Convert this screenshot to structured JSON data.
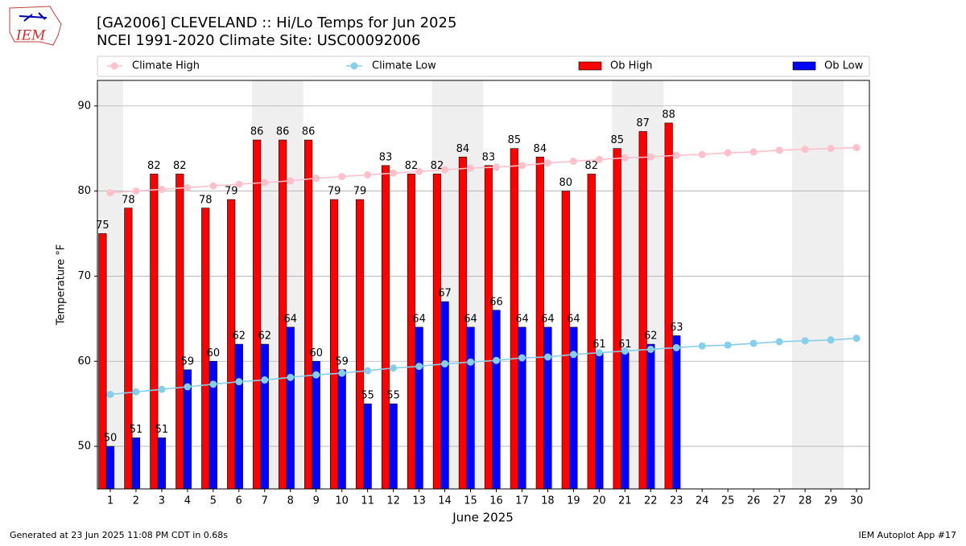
{
  "logo_text": "IEM",
  "footer_left": "Generated at 23 Jun 2025 11:08 PM CDT in 0.68s",
  "footer_right": "IEM Autoplot App #17",
  "chart_data": {
    "type": "bar",
    "title": "[GA2006] CLEVELAND :: Hi/Lo Temps for Jun 2025",
    "subtitle": "NCEI 1991-2020 Climate Site: USC00092006",
    "xlabel": "June 2025",
    "ylabel": "Temperature °F",
    "x": [
      1,
      2,
      3,
      4,
      5,
      6,
      7,
      8,
      9,
      10,
      11,
      12,
      13,
      14,
      15,
      16,
      17,
      18,
      19,
      20,
      21,
      22,
      23,
      24,
      25,
      26,
      27,
      28,
      29,
      30
    ],
    "xlim": [
      0.5,
      30.5
    ],
    "xticks": [
      1,
      2,
      3,
      4,
      5,
      6,
      7,
      8,
      9,
      10,
      11,
      12,
      13,
      14,
      15,
      16,
      17,
      18,
      19,
      20,
      21,
      22,
      23,
      24,
      25,
      26,
      27,
      28,
      29,
      30
    ],
    "ylim": [
      45,
      93
    ],
    "yticks": [
      50,
      60,
      70,
      80,
      90
    ],
    "grid": true,
    "weekend_shading": [
      1,
      7,
      8,
      14,
      15,
      21,
      22,
      28,
      29
    ],
    "series": [
      {
        "name": "Climate High",
        "kind": "line",
        "color": "#ffc0cb",
        "values": [
          79.8,
          80.0,
          80.2,
          80.4,
          80.6,
          80.8,
          81.0,
          81.2,
          81.5,
          81.7,
          81.9,
          82.1,
          82.3,
          82.5,
          82.7,
          82.8,
          83.0,
          83.3,
          83.5,
          83.7,
          83.9,
          84.0,
          84.2,
          84.3,
          84.5,
          84.6,
          84.8,
          84.9,
          85.0,
          85.1
        ]
      },
      {
        "name": "Climate Low",
        "kind": "line",
        "color": "#87ceeb",
        "values": [
          56.1,
          56.4,
          56.7,
          57.0,
          57.3,
          57.6,
          57.8,
          58.1,
          58.4,
          58.6,
          58.9,
          59.2,
          59.4,
          59.7,
          59.9,
          60.1,
          60.4,
          60.5,
          60.8,
          61.0,
          61.2,
          61.4,
          61.6,
          61.8,
          61.9,
          62.1,
          62.3,
          62.4,
          62.5,
          62.7
        ]
      },
      {
        "name": "Ob High",
        "kind": "bar",
        "color": "#ff0000",
        "values": [
          75,
          78,
          82,
          82,
          78,
          79,
          86,
          86,
          86,
          79,
          79,
          83,
          82,
          82,
          84,
          83,
          85,
          84,
          80,
          82,
          85,
          87,
          88,
          null,
          null,
          null,
          null,
          null,
          null,
          null
        ]
      },
      {
        "name": "Ob Low",
        "kind": "bar",
        "color": "#0000ff",
        "values": [
          50,
          51,
          51,
          59,
          60,
          62,
          62,
          64,
          60,
          59,
          55,
          55,
          64,
          67,
          64,
          66,
          64,
          64,
          64,
          61,
          61,
          62,
          63,
          null,
          null,
          null,
          null,
          null,
          null,
          null
        ]
      }
    ]
  }
}
